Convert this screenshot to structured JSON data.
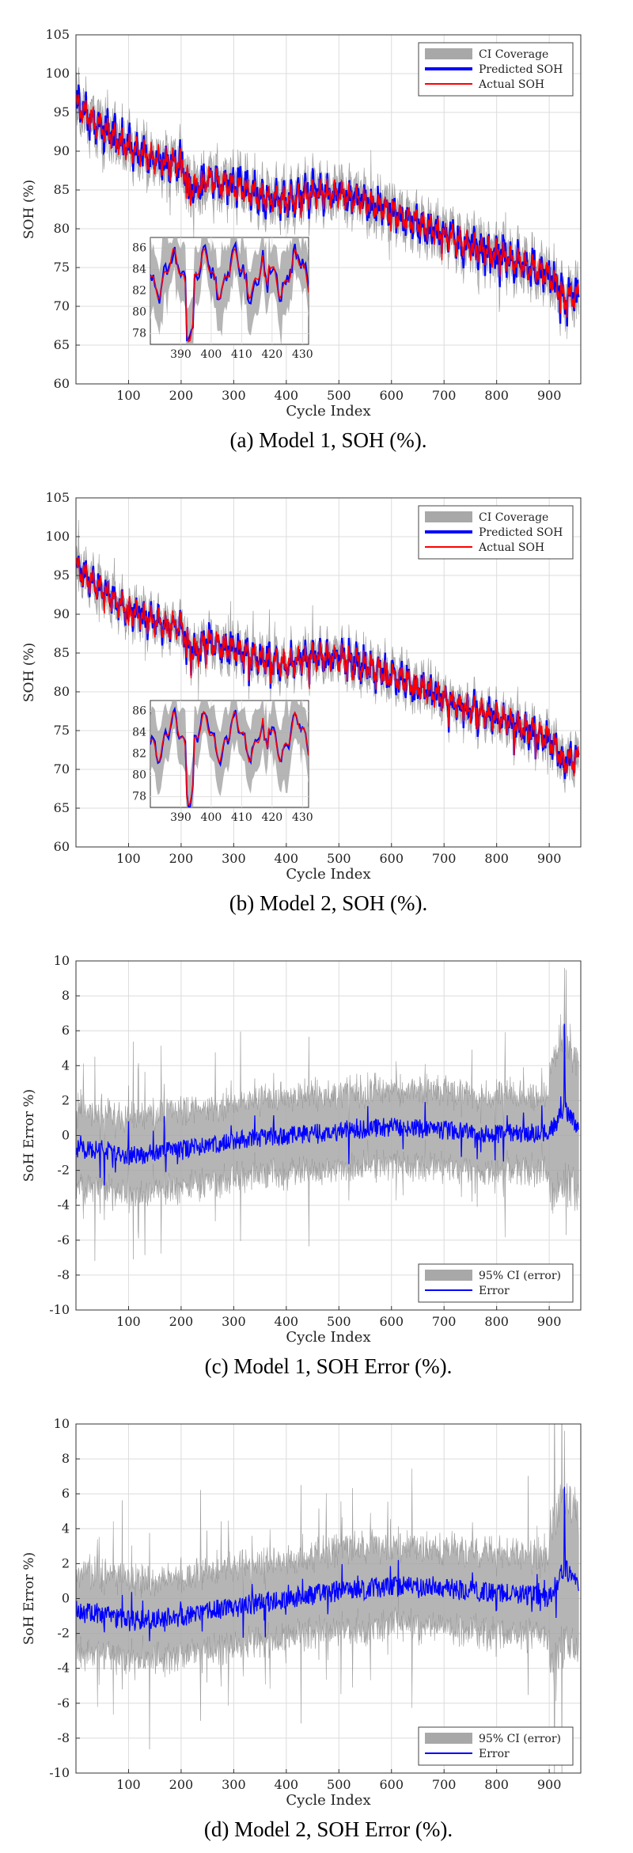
{
  "chart_data": [
    {
      "id": "a",
      "type": "line",
      "caption": "(a) Model 1, SOH (%).",
      "xlabel": "Cycle Index",
      "ylabel": "SOH (%)",
      "xlim": [
        0,
        960
      ],
      "ylim": [
        60,
        105
      ],
      "xticks": [
        100,
        200,
        300,
        400,
        500,
        600,
        700,
        800,
        900
      ],
      "yticks": [
        60,
        65,
        70,
        75,
        80,
        85,
        90,
        95,
        100,
        105
      ],
      "grid": true,
      "legend_position": "top-right",
      "legend": [
        {
          "label": "CI Coverage",
          "kind": "band",
          "color": "#a8a8a8"
        },
        {
          "label": "Predicted SOH",
          "kind": "line",
          "color": "#0000ff"
        },
        {
          "label": "Actual SOH",
          "kind": "line",
          "color": "#ff0000"
        }
      ],
      "trend": {
        "x": [
          0,
          50,
          100,
          150,
          200,
          220,
          250,
          300,
          350,
          400,
          450,
          500,
          550,
          600,
          650,
          700,
          750,
          800,
          850,
          900,
          930,
          960
        ],
        "y": [
          96,
          93,
          90.5,
          89,
          88.5,
          85,
          86.5,
          85.5,
          84.2,
          83.6,
          84.5,
          84.5,
          83.5,
          82.2,
          80.8,
          79.2,
          77.8,
          76.8,
          75.5,
          74,
          71,
          71.5
        ]
      },
      "ci_halfwidth": 1.9,
      "pred_noise": 1.4,
      "inset": {
        "xlim": [
          380,
          432
        ],
        "ylim": [
          77,
          87
        ],
        "xticks": [
          390,
          400,
          410,
          420,
          430
        ],
        "yticks": [
          78,
          80,
          82,
          84,
          86
        ]
      }
    },
    {
      "id": "b",
      "type": "line",
      "caption": "(b) Model 2, SOH (%).",
      "xlabel": "Cycle Index",
      "ylabel": "SOH (%)",
      "xlim": [
        0,
        960
      ],
      "ylim": [
        60,
        105
      ],
      "xticks": [
        100,
        200,
        300,
        400,
        500,
        600,
        700,
        800,
        900
      ],
      "yticks": [
        60,
        65,
        70,
        75,
        80,
        85,
        90,
        95,
        100,
        105
      ],
      "grid": true,
      "legend_position": "top-right",
      "legend": [
        {
          "label": "CI Coverage",
          "kind": "band",
          "color": "#a8a8a8"
        },
        {
          "label": "Predicted SOH",
          "kind": "line",
          "color": "#0000ff"
        },
        {
          "label": "Actual SOH",
          "kind": "line",
          "color": "#ff0000"
        }
      ],
      "trend": {
        "x": [
          0,
          50,
          100,
          150,
          200,
          220,
          250,
          300,
          350,
          400,
          450,
          500,
          550,
          600,
          650,
          700,
          750,
          800,
          850,
          900,
          930,
          960
        ],
        "y": [
          96,
          93,
          90.5,
          89,
          88.5,
          85,
          86.5,
          85.5,
          84.2,
          83.6,
          84.5,
          84.5,
          83.5,
          82.2,
          80.8,
          79.2,
          77.8,
          76.8,
          75.5,
          74,
          71,
          71.5
        ]
      },
      "ci_halfwidth": 1.6,
      "pred_noise": 1.0,
      "inset": {
        "xlim": [
          380,
          432
        ],
        "ylim": [
          77,
          87
        ],
        "xticks": [
          390,
          400,
          410,
          420,
          430
        ],
        "yticks": [
          78,
          80,
          82,
          84,
          86
        ]
      }
    },
    {
      "id": "c",
      "type": "line",
      "caption": "(c) Model 1, SOH Error (%).",
      "xlabel": "Cycle Index",
      "ylabel": "SoH Error %)",
      "xlim": [
        0,
        960
      ],
      "ylim": [
        -10,
        10
      ],
      "xticks": [
        100,
        200,
        300,
        400,
        500,
        600,
        700,
        800,
        900
      ],
      "yticks": [
        -10,
        -8,
        -6,
        -4,
        -2,
        0,
        2,
        4,
        6,
        8,
        10
      ],
      "grid": true,
      "legend_position": "bottom-right",
      "legend": [
        {
          "label": "95% CI (error)",
          "kind": "band",
          "color": "#a8a8a8"
        },
        {
          "label": "Error",
          "kind": "line",
          "color": "#0000ff"
        }
      ],
      "trend": {
        "x": [
          0,
          50,
          100,
          150,
          200,
          300,
          400,
          500,
          600,
          700,
          800,
          900,
          930,
          960
        ],
        "y": [
          -0.8,
          -0.8,
          -1.2,
          -1.0,
          -0.8,
          -0.3,
          0.0,
          0.2,
          0.5,
          0.3,
          0.1,
          0.2,
          1.5,
          0.3
        ]
      },
      "ci_halfwidth": 2.2,
      "pred_noise": 0.55
    },
    {
      "id": "d",
      "type": "line",
      "caption": "(d) Model 2, SOH Error (%).",
      "xlabel": "Cycle Index",
      "ylabel": "SoH Error %)",
      "xlim": [
        0,
        960
      ],
      "ylim": [
        -10,
        10
      ],
      "xticks": [
        100,
        200,
        300,
        400,
        500,
        600,
        700,
        800,
        900
      ],
      "yticks": [
        -10,
        -8,
        -6,
        -4,
        -2,
        0,
        2,
        4,
        6,
        8,
        10
      ],
      "grid": true,
      "legend_position": "bottom-right",
      "legend": [
        {
          "label": "95% CI (error)",
          "kind": "band",
          "color": "#a8a8a8"
        },
        {
          "label": "Error",
          "kind": "line",
          "color": "#0000ff"
        }
      ],
      "trend": {
        "x": [
          0,
          50,
          100,
          150,
          200,
          300,
          400,
          500,
          600,
          700,
          800,
          900,
          930,
          960
        ],
        "y": [
          -0.7,
          -0.9,
          -1.3,
          -1.2,
          -1.0,
          -0.5,
          0.0,
          0.4,
          0.7,
          0.6,
          0.3,
          0.1,
          1.8,
          0.4
        ]
      },
      "ci_halfwidth": 2.3,
      "pred_noise": 0.6
    }
  ]
}
